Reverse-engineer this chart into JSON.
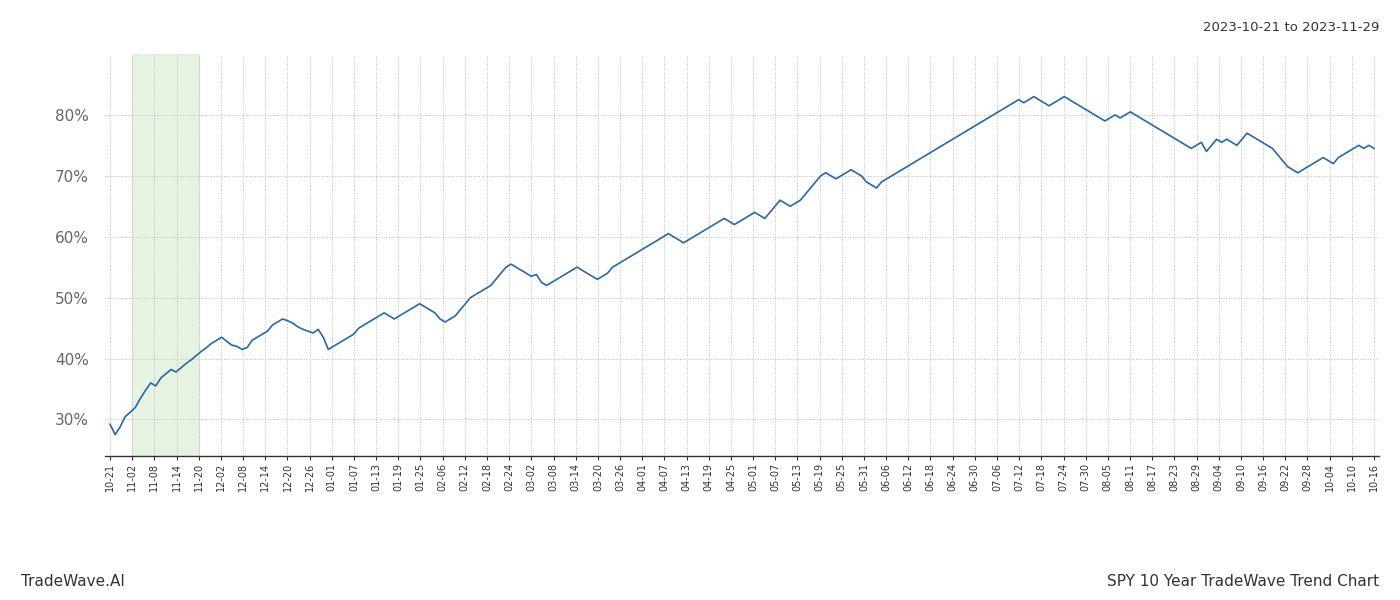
{
  "title_top_right": "2023-10-21 to 2023-11-29",
  "title_bottom_right": "SPY 10 Year TradeWave Trend Chart",
  "title_bottom_left": "TradeWave.AI",
  "line_color": "#2968a8",
  "line_width": 1.2,
  "highlight_color": "#c8e6c0",
  "highlight_alpha": 0.45,
  "background_color": "#ffffff",
  "grid_color": "#bbbbbb",
  "grid_style": ":",
  "ylim": [
    24,
    90
  ],
  "yticks": [
    30,
    40,
    50,
    60,
    70,
    80
  ],
  "x_labels": [
    "10-21",
    "11-02",
    "11-08",
    "11-14",
    "11-20",
    "12-02",
    "12-08",
    "12-14",
    "12-20",
    "12-26",
    "01-01",
    "01-07",
    "01-13",
    "01-19",
    "01-25",
    "02-06",
    "02-12",
    "02-18",
    "02-24",
    "03-02",
    "03-08",
    "03-14",
    "03-20",
    "03-26",
    "04-01",
    "04-07",
    "04-13",
    "04-19",
    "04-25",
    "05-01",
    "05-07",
    "05-13",
    "05-19",
    "05-25",
    "05-31",
    "06-06",
    "06-12",
    "06-18",
    "06-24",
    "06-30",
    "07-06",
    "07-12",
    "07-18",
    "07-24",
    "07-30",
    "08-05",
    "08-11",
    "08-17",
    "08-23",
    "08-29",
    "09-04",
    "09-10",
    "09-16",
    "09-22",
    "09-28",
    "10-04",
    "10-10",
    "10-16"
  ],
  "highlight_label_start": "11-02",
  "highlight_label_end": "11-20",
  "values": [
    29.2,
    27.5,
    28.8,
    30.5,
    31.2,
    32.0,
    33.5,
    34.8,
    36.0,
    35.5,
    36.8,
    37.5,
    38.2,
    37.8,
    38.5,
    39.2,
    39.8,
    40.5,
    41.2,
    41.8,
    42.5,
    43.0,
    43.5,
    42.8,
    42.2,
    42.0,
    41.5,
    41.8,
    43.0,
    43.5,
    44.0,
    44.5,
    45.5,
    46.0,
    46.5,
    46.2,
    45.8,
    45.2,
    44.8,
    44.5,
    44.2,
    44.8,
    43.5,
    41.5,
    42.0,
    42.5,
    43.0,
    43.5,
    44.0,
    45.0,
    45.5,
    46.0,
    46.5,
    47.0,
    47.5,
    47.0,
    46.5,
    47.0,
    47.5,
    48.0,
    48.5,
    49.0,
    48.5,
    48.0,
    47.5,
    46.5,
    46.0,
    46.5,
    47.0,
    48.0,
    49.0,
    50.0,
    50.5,
    51.0,
    51.5,
    52.0,
    53.0,
    54.0,
    55.0,
    55.5,
    55.0,
    54.5,
    54.0,
    53.5,
    53.8,
    52.5,
    52.0,
    52.5,
    53.0,
    53.5,
    54.0,
    54.5,
    55.0,
    54.5,
    54.0,
    53.5,
    53.0,
    53.5,
    54.0,
    55.0,
    55.5,
    56.0,
    56.5,
    57.0,
    57.5,
    58.0,
    58.5,
    59.0,
    59.5,
    60.0,
    60.5,
    60.0,
    59.5,
    59.0,
    59.5,
    60.0,
    60.5,
    61.0,
    61.5,
    62.0,
    62.5,
    63.0,
    62.5,
    62.0,
    62.5,
    63.0,
    63.5,
    64.0,
    63.5,
    63.0,
    64.0,
    65.0,
    66.0,
    65.5,
    65.0,
    65.5,
    66.0,
    67.0,
    68.0,
    69.0,
    70.0,
    70.5,
    70.0,
    69.5,
    70.0,
    70.5,
    71.0,
    70.5,
    70.0,
    69.0,
    68.5,
    68.0,
    69.0,
    69.5,
    70.0,
    70.5,
    71.0,
    71.5,
    72.0,
    72.5,
    73.0,
    73.5,
    74.0,
    74.5,
    75.0,
    75.5,
    76.0,
    76.5,
    77.0,
    77.5,
    78.0,
    78.5,
    79.0,
    79.5,
    80.0,
    80.5,
    81.0,
    81.5,
    82.0,
    82.5,
    82.0,
    82.5,
    83.0,
    82.5,
    82.0,
    81.5,
    82.0,
    82.5,
    83.0,
    82.5,
    82.0,
    81.5,
    81.0,
    80.5,
    80.0,
    79.5,
    79.0,
    79.5,
    80.0,
    79.5,
    80.0,
    80.5,
    80.0,
    79.5,
    79.0,
    78.5,
    78.0,
    77.5,
    77.0,
    76.5,
    76.0,
    75.5,
    75.0,
    74.5,
    75.0,
    75.5,
    74.0,
    75.0,
    76.0,
    75.5,
    76.0,
    75.5,
    75.0,
    76.0,
    77.0,
    76.5,
    76.0,
    75.5,
    75.0,
    74.5,
    73.5,
    72.5,
    71.5,
    71.0,
    70.5,
    71.0,
    71.5,
    72.0,
    72.5,
    73.0,
    72.5,
    72.0,
    73.0,
    73.5,
    74.0,
    74.5,
    75.0,
    74.5,
    75.0,
    74.5
  ]
}
